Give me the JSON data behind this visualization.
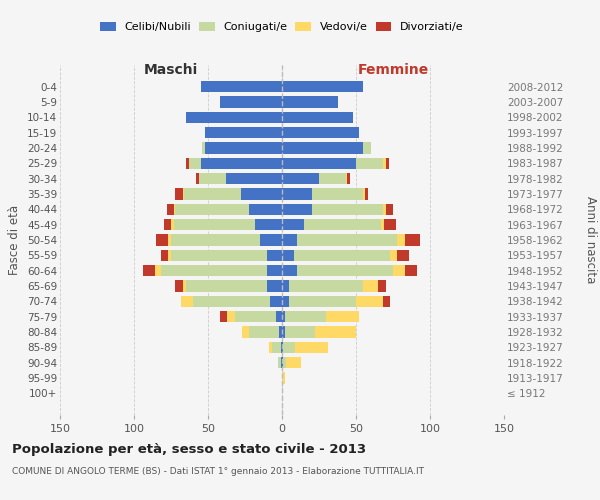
{
  "age_groups": [
    "100+",
    "95-99",
    "90-94",
    "85-89",
    "80-84",
    "75-79",
    "70-74",
    "65-69",
    "60-64",
    "55-59",
    "50-54",
    "45-49",
    "40-44",
    "35-39",
    "30-34",
    "25-29",
    "20-24",
    "15-19",
    "10-14",
    "5-9",
    "0-4"
  ],
  "birth_years": [
    "≤ 1912",
    "1913-1917",
    "1918-1922",
    "1923-1927",
    "1928-1932",
    "1933-1937",
    "1938-1942",
    "1943-1947",
    "1948-1952",
    "1953-1957",
    "1958-1962",
    "1963-1967",
    "1968-1972",
    "1973-1977",
    "1978-1982",
    "1983-1987",
    "1988-1992",
    "1993-1997",
    "1998-2002",
    "2003-2007",
    "2008-2012"
  ],
  "male": {
    "celibi": [
      0,
      0,
      1,
      1,
      2,
      4,
      8,
      10,
      10,
      10,
      15,
      18,
      22,
      28,
      38,
      55,
      52,
      52,
      65,
      42,
      55
    ],
    "coniugati": [
      0,
      0,
      2,
      6,
      20,
      28,
      52,
      55,
      72,
      65,
      60,
      55,
      50,
      38,
      18,
      8,
      2,
      0,
      0,
      0,
      0
    ],
    "vedovi": [
      0,
      0,
      0,
      2,
      5,
      5,
      8,
      2,
      4,
      2,
      2,
      2,
      1,
      1,
      0,
      0,
      0,
      0,
      0,
      0,
      0
    ],
    "divorziati": [
      0,
      0,
      0,
      0,
      0,
      5,
      0,
      5,
      8,
      5,
      8,
      5,
      5,
      5,
      2,
      2,
      0,
      0,
      0,
      0,
      0
    ]
  },
  "female": {
    "celibi": [
      0,
      0,
      1,
      1,
      2,
      2,
      5,
      5,
      10,
      8,
      10,
      15,
      20,
      20,
      25,
      50,
      55,
      52,
      48,
      38,
      55
    ],
    "coniugati": [
      0,
      0,
      2,
      8,
      20,
      28,
      45,
      50,
      65,
      65,
      68,
      52,
      48,
      35,
      18,
      18,
      5,
      0,
      0,
      0,
      0
    ],
    "vedovi": [
      0,
      2,
      10,
      22,
      28,
      22,
      18,
      10,
      8,
      5,
      5,
      2,
      2,
      1,
      1,
      2,
      0,
      0,
      0,
      0,
      0
    ],
    "divorziati": [
      0,
      0,
      0,
      0,
      0,
      0,
      5,
      5,
      8,
      8,
      10,
      8,
      5,
      2,
      2,
      2,
      0,
      0,
      0,
      0,
      0
    ]
  },
  "colors": {
    "celibi": "#4472c4",
    "coniugati": "#c5d9a0",
    "vedovi": "#ffd966",
    "divorziati": "#c0392b"
  },
  "xlim": 150,
  "title": "Popolazione per età, sesso e stato civile - 2013",
  "subtitle": "COMUNE DI ANGOLO TERME (BS) - Dati ISTAT 1° gennaio 2013 - Elaborazione TUTTITALIA.IT",
  "ylabel_left": "Fasce di età",
  "ylabel_right": "Anni di nascita",
  "bg_color": "#f5f5f5",
  "grid_color": "#cccccc",
  "maschi_label": "Maschi",
  "femmine_label": "Femmine",
  "legend_labels": [
    "Celibi/Nubili",
    "Coniugati/e",
    "Vedovi/e",
    "Divorziati/e"
  ],
  "xticks": [
    -150,
    -100,
    -50,
    0,
    50,
    100,
    150
  ]
}
